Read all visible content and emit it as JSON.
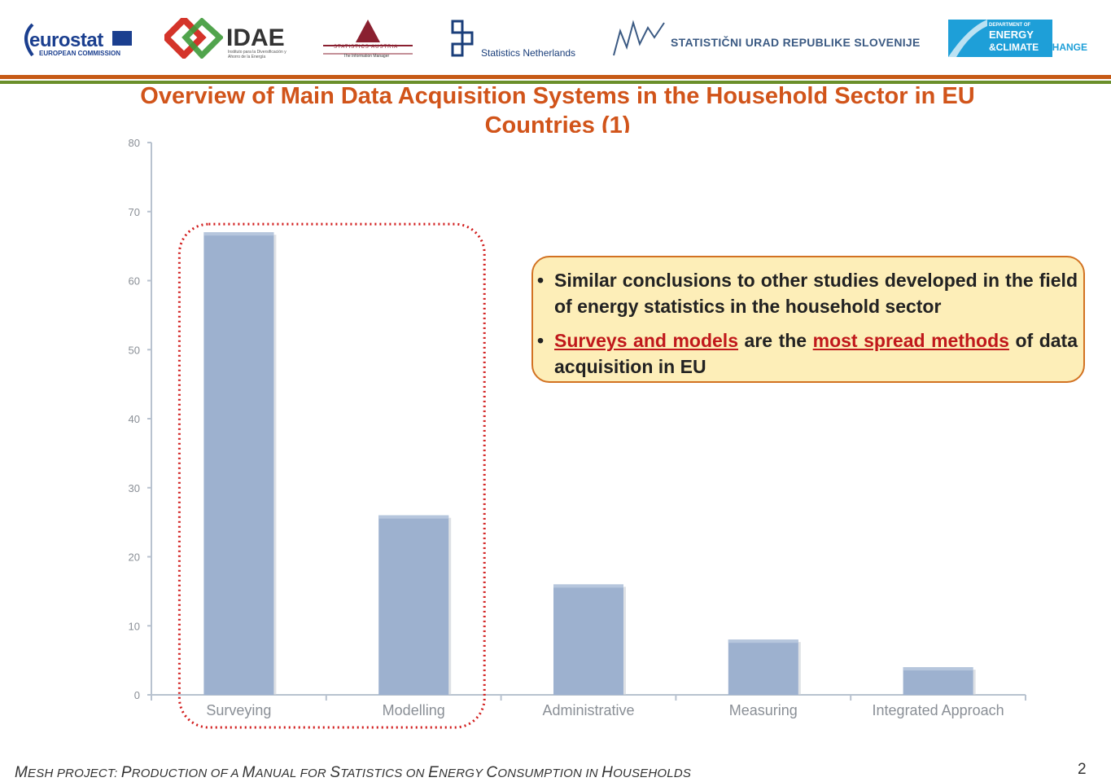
{
  "header": {
    "logos": [
      {
        "name": "eurostat",
        "text": "eurostat",
        "sub": "EUROPEAN COMMISSION"
      },
      {
        "name": "idae",
        "text": "IDAE",
        "sub": "Instituto para la Diversificación y Ahorro de la Energía"
      },
      {
        "name": "statistics-austria",
        "text": "STATISTICS AUSTRIA",
        "sub": "The Information Manager"
      },
      {
        "name": "statistics-netherlands",
        "text": "Statistics Netherlands"
      },
      {
        "name": "statistical-office-slovenia",
        "text": "STATISTIČNI URAD REPUBLIKE SLOVENIJE"
      },
      {
        "name": "decc",
        "text_top": "DEPARTMENT OF",
        "text_mid": "ENERGY",
        "text_bottom": "&CLIMATE",
        "text_right": "CHANGE"
      }
    ]
  },
  "title_line1": "Overview of Main Data Acquisition  Systems  in the Household Sector in EU",
  "title_line2": "Countries (1)",
  "chart_data": {
    "type": "bar",
    "categories": [
      "Surveying",
      "Modelling",
      "Administrative",
      "Measuring",
      "Integrated Approach"
    ],
    "values": [
      67,
      26,
      16,
      8,
      4
    ],
    "yticks": [
      0,
      10,
      20,
      30,
      40,
      50,
      60,
      70,
      80
    ],
    "ylim": [
      0,
      80
    ],
    "bar_color": "#9db1cf",
    "highlight_border_color": "#d11b1b",
    "highlighted_categories": [
      "Surveying",
      "Modelling"
    ]
  },
  "callout": {
    "bullet1": "Similar conclusions to other studies developed in the field of energy statistics  in the household sector",
    "bullet2_part1": "Surveys and models",
    "bullet2_part2": " are the ",
    "bullet2_part3": "most spread methods",
    "bullet2_part4": " of data acquisition in EU"
  },
  "footer": {
    "text_parts": [
      {
        "big": "M",
        "small": "ESH PROJECT: "
      },
      {
        "big": "P",
        "small": "RODUCTION OF A "
      },
      {
        "big": "M",
        "small": "ANUAL FOR "
      },
      {
        "big": "S",
        "small": "TATISTICS ON "
      },
      {
        "big": "E",
        "small": "NERGY "
      },
      {
        "big": "C",
        "small": "ONSUMPTION IN "
      },
      {
        "big": "H",
        "small": "OUSEHOLDS"
      }
    ],
    "page_number": "2"
  },
  "colors": {
    "title": "#d1541a",
    "band_orange": "#c65a16",
    "band_green": "#6a8f2a",
    "callout_bg": "#fdeeb8",
    "callout_border": "#d27222",
    "highlight_text": "#c0181b"
  }
}
